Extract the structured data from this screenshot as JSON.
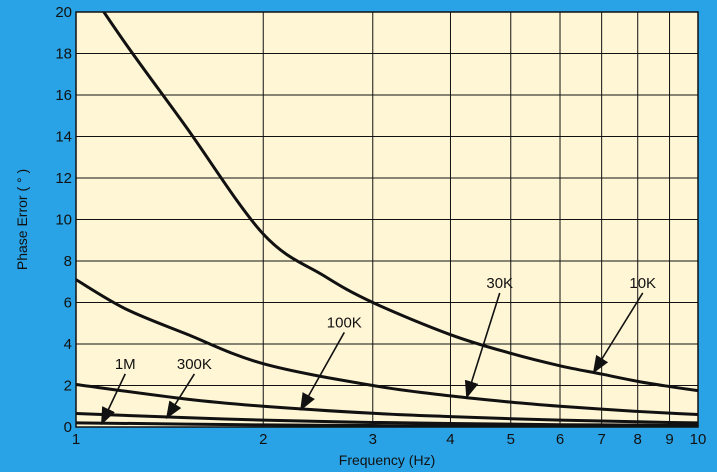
{
  "colors": {
    "background": "#29a3e6",
    "plot_area": "#fff6d6",
    "grid": "#111111",
    "curves": "#111111",
    "text": "#111111"
  },
  "chart_data": {
    "type": "line",
    "title": "",
    "xlabel": "Frequency (Hz)",
    "ylabel": "Phase Error ( ° )",
    "xscale": "log",
    "xlim": [
      1,
      10
    ],
    "ylim": [
      0,
      20
    ],
    "grid": true,
    "legend": "none",
    "x_ticks": [
      1,
      2,
      3,
      4,
      5,
      6,
      7,
      8,
      9,
      10
    ],
    "x_tick_labels": [
      "1",
      "2",
      "3",
      "4",
      "5",
      "6",
      "7",
      "8",
      "9",
      "10"
    ],
    "y_ticks": [
      0,
      2,
      4,
      6,
      8,
      10,
      12,
      14,
      16,
      18,
      20
    ],
    "y_tick_labels": [
      "0",
      "2",
      "4",
      "6",
      "8",
      "10",
      "12",
      "14",
      "16",
      "18",
      "20"
    ],
    "series": [
      {
        "name": "10K",
        "x": [
          1,
          1.2,
          1.5,
          2,
          2.5,
          3,
          4,
          5,
          6,
          7,
          8,
          9,
          10
        ],
        "y": [
          22,
          18.5,
          14.5,
          9.3,
          7.3,
          6.0,
          4.45,
          3.55,
          2.95,
          2.55,
          2.2,
          1.95,
          1.75
        ]
      },
      {
        "name": "30K",
        "x": [
          1,
          1.2,
          1.5,
          2,
          3,
          4,
          5,
          6,
          7,
          8,
          9,
          10
        ],
        "y": [
          7.1,
          5.7,
          4.5,
          3.05,
          2.0,
          1.5,
          1.2,
          1.0,
          0.86,
          0.75,
          0.67,
          0.6
        ]
      },
      {
        "name": "100K",
        "x": [
          1,
          1.5,
          2,
          3,
          4,
          5,
          6,
          7,
          8,
          9,
          10
        ],
        "y": [
          2.05,
          1.35,
          1.0,
          0.66,
          0.5,
          0.4,
          0.33,
          0.29,
          0.25,
          0.22,
          0.2
        ]
      },
      {
        "name": "300K",
        "x": [
          1,
          1.5,
          2,
          3,
          4,
          5,
          6,
          7,
          8,
          9,
          10
        ],
        "y": [
          0.65,
          0.45,
          0.33,
          0.22,
          0.17,
          0.14,
          0.11,
          0.1,
          0.09,
          0.08,
          0.07
        ]
      },
      {
        "name": "1M",
        "x": [
          1,
          1.5,
          2,
          3,
          4,
          5,
          6,
          7,
          8,
          9,
          10
        ],
        "y": [
          0.2,
          0.14,
          0.1,
          0.07,
          0.05,
          0.04,
          0.04,
          0.03,
          0.03,
          0.03,
          0.02
        ]
      }
    ],
    "annotations": [
      {
        "text": "10K",
        "series": "10K",
        "label_at": [
          8.15,
          6.7
        ],
        "arrow_to": [
          6.8,
          2.65
        ]
      },
      {
        "text": "30K",
        "series": "30K",
        "label_at": [
          4.8,
          6.7
        ],
        "arrow_to": [
          4.25,
          1.45
        ]
      },
      {
        "text": "100K",
        "series": "100K",
        "label_at": [
          2.7,
          4.8
        ],
        "arrow_to": [
          2.3,
          0.85
        ]
      },
      {
        "text": "300K",
        "series": "300K",
        "label_at": [
          1.55,
          2.8
        ],
        "arrow_to": [
          1.4,
          0.45
        ]
      },
      {
        "text": "1M",
        "series": "1M",
        "label_at": [
          1.2,
          2.8
        ],
        "arrow_to": [
          1.1,
          0.17
        ]
      }
    ]
  }
}
